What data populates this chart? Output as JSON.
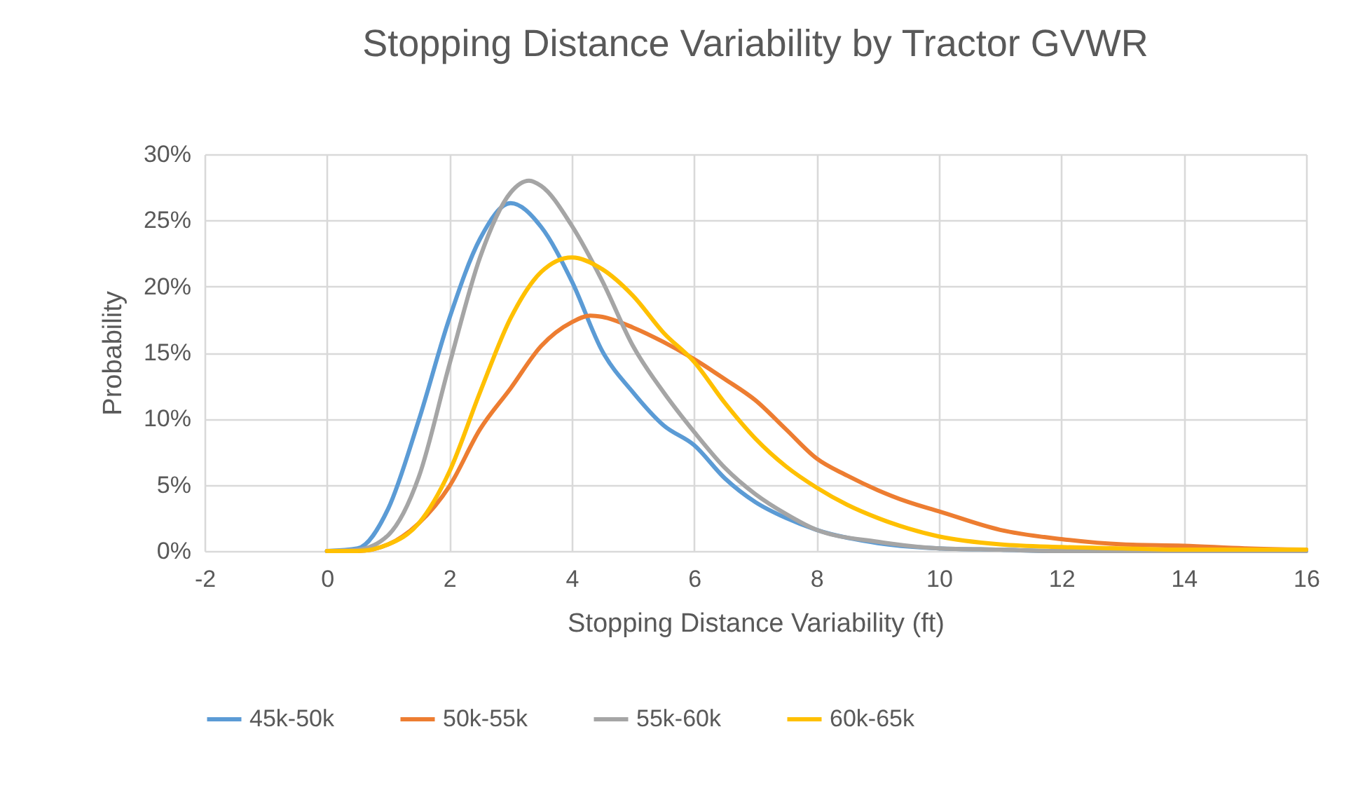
{
  "chart_data": {
    "type": "line",
    "title": "Stopping Distance Variability by Tractor GVWR",
    "xlabel": "Stopping Distance Variability (ft)",
    "ylabel": "Probability",
    "xlim": [
      -2,
      16
    ],
    "xticks": [
      -2,
      0,
      2,
      4,
      6,
      8,
      10,
      12,
      14,
      16
    ],
    "ylim": [
      0,
      30
    ],
    "yticks": [
      {
        "value": 0,
        "label": "0%"
      },
      {
        "value": 5,
        "label": "5%"
      },
      {
        "value": 10,
        "label": "10%"
      },
      {
        "value": 15,
        "label": "15%"
      },
      {
        "value": 20,
        "label": "20%"
      },
      {
        "value": 25,
        "label": "25%"
      },
      {
        "value": 30,
        "label": "30%"
      }
    ],
    "grid": true,
    "legend": "bottom",
    "marker": "none",
    "line_style": "solid",
    "series": [
      {
        "name": "45k-50k",
        "color": "#5b9bd5",
        "x": [
          0,
          0.5,
          1,
          1.5,
          2,
          2.5,
          3,
          3.5,
          4,
          4.5,
          5,
          5.5,
          6,
          6.5,
          7,
          7.5,
          8,
          9,
          10,
          11,
          12,
          16
        ],
        "values": [
          0,
          0.2,
          3.2,
          9.9,
          17.6,
          23.6,
          26.3,
          24.5,
          20.4,
          15.1,
          12,
          9.5,
          8,
          5.5,
          3.7,
          2.5,
          1.6,
          0.6,
          0.2,
          0.1,
          0,
          0
        ]
      },
      {
        "name": "50k-55k",
        "color": "#ed7d31",
        "x": [
          0,
          0.5,
          1,
          1.5,
          2,
          2.5,
          3,
          3.5,
          4,
          4.3,
          4.5,
          5,
          5.5,
          6,
          6.5,
          7,
          7.5,
          8,
          8.5,
          9,
          9.5,
          10,
          11,
          12,
          13,
          14,
          15,
          16
        ],
        "values": [
          0,
          0,
          0.5,
          2.1,
          4.9,
          9.2,
          12.3,
          15.5,
          17.3,
          17.8,
          17.7,
          16.9,
          15.8,
          14.5,
          13,
          11.4,
          9.2,
          7,
          5.7,
          4.6,
          3.7,
          3,
          1.6,
          0.9,
          0.5,
          0.4,
          0.2,
          0.1
        ]
      },
      {
        "name": "55k-60k",
        "color": "#a5a5a5",
        "x": [
          0,
          0.5,
          1,
          1.5,
          2,
          2.5,
          3,
          3.3,
          3.5,
          4,
          4.5,
          5,
          5.5,
          6,
          6.5,
          7,
          7.5,
          8,
          9,
          10,
          11,
          12,
          16
        ],
        "values": [
          0,
          0.1,
          1.2,
          5.6,
          14.1,
          22.2,
          27.1,
          28,
          27.6,
          24.6,
          20.4,
          15.5,
          12,
          9,
          6.3,
          4.3,
          2.8,
          1.6,
          0.7,
          0.2,
          0.1,
          0,
          0
        ]
      },
      {
        "name": "60k-65k",
        "color": "#ffc000",
        "x": [
          0,
          0.5,
          1,
          1.5,
          2,
          2.5,
          3,
          3.5,
          4,
          4.5,
          5,
          5.5,
          6,
          6.5,
          7,
          7.5,
          8,
          8.5,
          9,
          9.5,
          10,
          11,
          12,
          13,
          14,
          16
        ],
        "values": [
          0,
          0,
          0.5,
          2.1,
          6,
          12,
          17.6,
          21.1,
          22.2,
          21.3,
          19.3,
          16.5,
          14.3,
          11.2,
          8.5,
          6.4,
          4.8,
          3.5,
          2.5,
          1.7,
          1.1,
          0.5,
          0.3,
          0.2,
          0.1,
          0.1
        ]
      }
    ]
  }
}
